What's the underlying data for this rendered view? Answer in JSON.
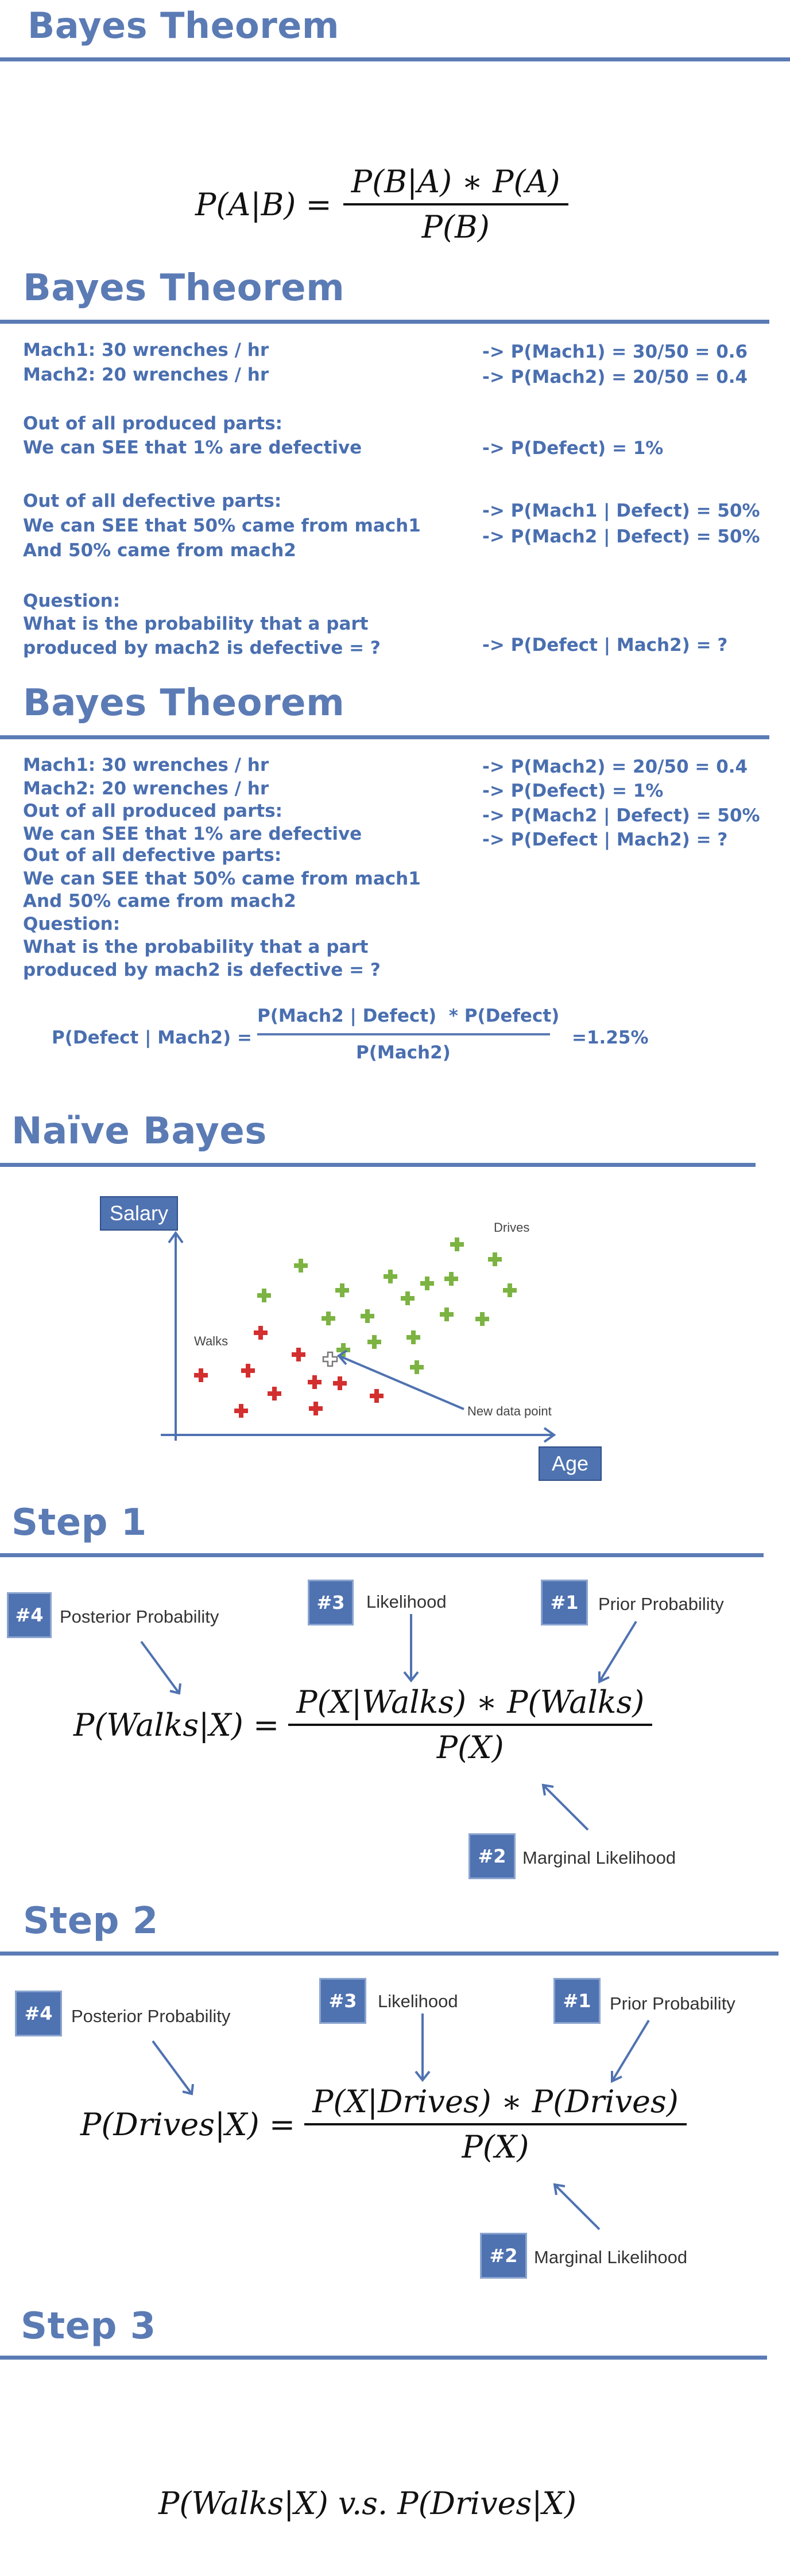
{
  "slide1": {
    "title": "Bayes Theorem",
    "lhs": "P(A|B) =",
    "num": "P(B|A) ∗ P(A)",
    "den": "P(B)"
  },
  "slide2": {
    "title": "Bayes Theorem",
    "left": {
      "l1": "Mach1: 30 wrenches / hr",
      "l2": "Mach2: 20 wrenches / hr",
      "l3": "Out of all produced parts:",
      "l4": "We can SEE that 1% are defective",
      "l5": "Out of all defective parts:",
      "l6": "We can SEE that 50% came from mach1",
      "l7": "And 50% came from mach2",
      "l8": "Question:",
      "l9": "What is the probability that a part",
      "l10": "produced by mach2 is defective = ?"
    },
    "right": {
      "r1": "-> P(Mach1) = 30/50 = 0.6",
      "r2": "-> P(Mach2) = 20/50 = 0.4",
      "r3": "-> P(Defect) = 1%",
      "r4": "-> P(Mach1 | Defect) = 50%",
      "r5": "-> P(Mach2 | Defect) = 50%",
      "r6": "-> P(Defect | Mach2) = ?"
    }
  },
  "slide3": {
    "title": "Bayes Theorem",
    "left": {
      "l1": "Mach1: 30 wrenches / hr",
      "l2": "Mach2: 20 wrenches / hr",
      "l3": "Out of all produced parts:",
      "l4": "We can SEE that 1% are defective",
      "l5": "Out of all defective parts:",
      "l6": "We can SEE that 50% came from mach1",
      "l7": "And 50% came from mach2",
      "l8": "Question:",
      "l9": "What is the probability that a part",
      "l10": "produced by mach2 is defective = ?"
    },
    "right": {
      "r1": "-> P(Mach2) = 20/50 = 0.4",
      "r2": "-> P(Defect) = 1%",
      "r3": "-> P(Mach2 | Defect) = 50%",
      "r4": "-> P(Defect | Mach2) = ?"
    },
    "formula": {
      "lhs": "P(Defect | Mach2) =",
      "num": "P(Mach2 | Defect)  * P(Defect)",
      "den": "P(Mach2)",
      "result": "=1.25%"
    }
  },
  "slide4": {
    "title": "Naïve Bayes",
    "y_label": "Salary",
    "x_label": "Age",
    "drives_label": "Drives",
    "walks_label": "Walks",
    "new_point_label": "New data point",
    "colors": {
      "drives": "#7cb342",
      "walks": "#d32f2f",
      "new": "#888888",
      "axis": "#4f72b1"
    }
  },
  "slide5": {
    "title": "Step 1",
    "b4": "#4",
    "l4": "Posterior Probability",
    "b3": "#3",
    "l3": "Likelihood",
    "b1": "#1",
    "l1": "Prior Probability",
    "b2": "#2",
    "l2": "Marginal Likelihood",
    "lhs": "P(Walks|X) =",
    "num": "P(X|Walks) ∗ P(Walks)",
    "den": "P(X)"
  },
  "slide6": {
    "title": "Step 2",
    "b4": "#4",
    "l4": "Posterior Probability",
    "b3": "#3",
    "l3": "Likelihood",
    "b1": "#1",
    "l1": "Prior Probability",
    "b2": "#2",
    "l2": "Marginal Likelihood",
    "lhs": "P(Drives|X) =",
    "num": "P(X|Drives) ∗ P(Drives)",
    "den": "P(X)"
  },
  "slide7": {
    "title": "Step 3",
    "formula": "P(Walks|X) v.s. P(Drives|X)"
  }
}
